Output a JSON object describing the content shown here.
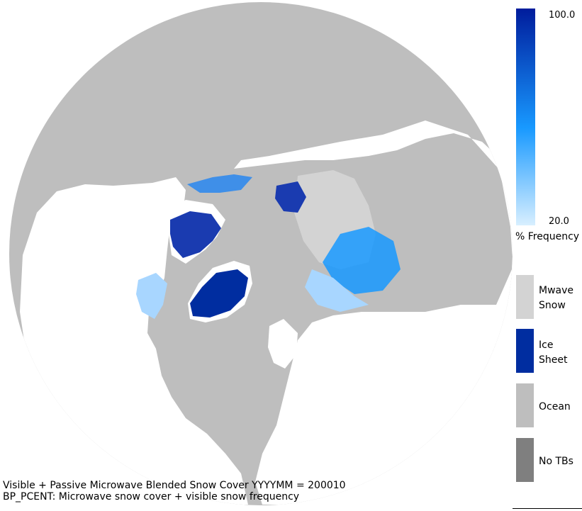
{
  "colors": {
    "ocean": "#bebebe",
    "land": "#ffffff",
    "mwave_snow": "#d3d3d3",
    "ice_sheet": "#002da0",
    "no_tbs": "#7f7f7f",
    "colorbar_top": "#001c9c",
    "colorbar_mid": "#1899ff",
    "colorbar_bottom": "#d8efff"
  },
  "colorbar": {
    "max_label": "100.0",
    "min_label": "20.0",
    "title": "% Frequency"
  },
  "legend": [
    {
      "key": "mwave_snow",
      "label_line1": "Mwave",
      "label_line2": "Snow"
    },
    {
      "key": "ice_sheet",
      "label_line1": "Ice",
      "label_line2": "Sheet"
    },
    {
      "key": "ocean",
      "label_line1": "Ocean",
      "label_line2": ""
    },
    {
      "key": "no_tbs",
      "label_line1": "No TBs",
      "label_line2": ""
    }
  ],
  "caption": {
    "line1": "Visible + Passive Microwave Blended Snow Cover YYYYMM = 200010",
    "line2": "BP_PCENT: Microwave snow cover + visible snow frequency"
  }
}
